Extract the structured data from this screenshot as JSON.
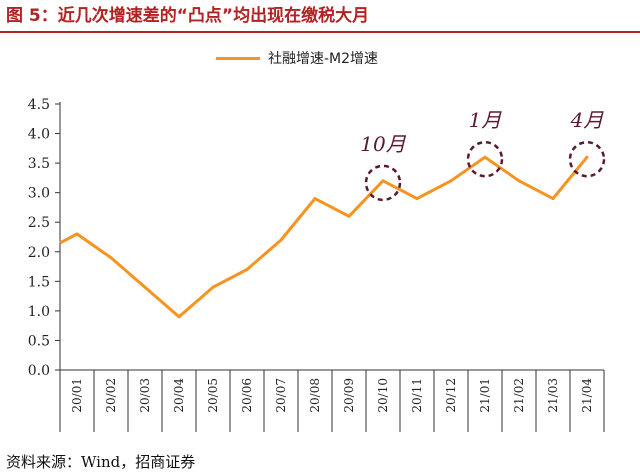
{
  "figure": {
    "title": "图 5：近几次增速差的“凸点”均出现在缴税大月",
    "source": "资料来源：Wind，招商证券"
  },
  "chart_data": {
    "type": "line",
    "title": "",
    "xlabel": "",
    "ylabel": "",
    "categories": [
      "20/01",
      "20/02",
      "20/03",
      "20/04",
      "20/05",
      "20/06",
      "20/07",
      "20/08",
      "20/09",
      "20/10",
      "20/11",
      "20/12",
      "21/01",
      "21/02",
      "21/03",
      "21/04"
    ],
    "series": [
      {
        "name": "社融增速-M2增速",
        "values": [
          2.3,
          1.9,
          1.4,
          0.9,
          1.4,
          1.7,
          2.2,
          2.9,
          2.6,
          3.2,
          2.9,
          3.2,
          3.6,
          3.2,
          2.9,
          3.6
        ]
      }
    ],
    "line_start_value": 2.15,
    "ylim": [
      0.0,
      4.5
    ],
    "yticks": [
      "0.0",
      "0.5",
      "1.0",
      "1.5",
      "2.0",
      "2.5",
      "3.0",
      "3.5",
      "4.0",
      "4.5"
    ],
    "grid": false,
    "legend_position": "top-center",
    "annotations": [
      {
        "label": "10月",
        "category": "20/10"
      },
      {
        "label": "1月",
        "category": "21/01"
      },
      {
        "label": "4月",
        "category": "21/04"
      }
    ],
    "colors": {
      "line": "#f7931e",
      "annotation": "#5a1a2e",
      "axis": "#333333"
    }
  }
}
